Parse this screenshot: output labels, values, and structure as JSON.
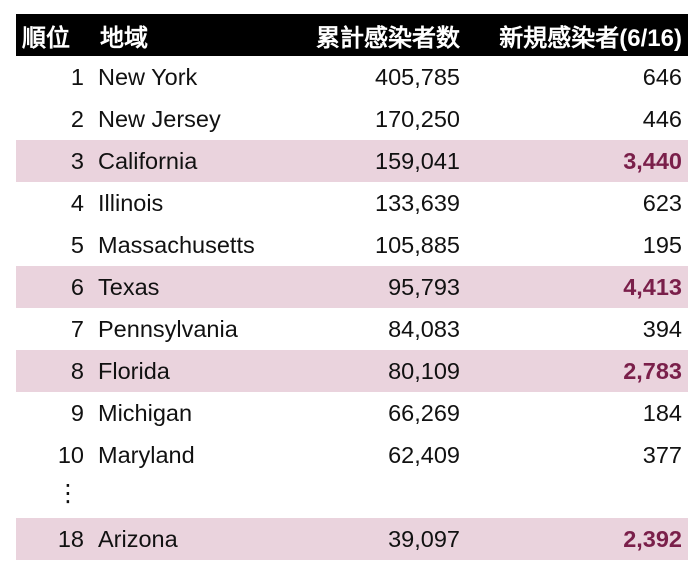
{
  "table": {
    "headers": {
      "rank": "順位",
      "region": "地域",
      "total": "累計感染者数",
      "new": "新規感染者(6/16)"
    },
    "rows": [
      {
        "rank": "1",
        "region": "New York",
        "total": "405,785",
        "new": "646",
        "highlight": false
      },
      {
        "rank": "2",
        "region": "New Jersey",
        "total": "170,250",
        "new": "446",
        "highlight": false
      },
      {
        "rank": "3",
        "region": "California",
        "total": "159,041",
        "new": "3,440",
        "highlight": true
      },
      {
        "rank": "4",
        "region": "Illinois",
        "total": "133,639",
        "new": "623",
        "highlight": false
      },
      {
        "rank": "5",
        "region": "Massachusetts",
        "total": "105,885",
        "new": "195",
        "highlight": false
      },
      {
        "rank": "6",
        "region": "Texas",
        "total": "95,793",
        "new": "4,413",
        "highlight": true
      },
      {
        "rank": "7",
        "region": "Pennsylvania",
        "total": "84,083",
        "new": "394",
        "highlight": false
      },
      {
        "rank": "8",
        "region": "Florida",
        "total": "80,109",
        "new": "2,783",
        "highlight": true
      },
      {
        "rank": "9",
        "region": "Michigan",
        "total": "66,269",
        "new": "184",
        "highlight": false
      },
      {
        "rank": "10",
        "region": "Maryland",
        "total": "62,409",
        "new": "377",
        "highlight": false
      }
    ],
    "ellipsis": "⋮",
    "last_row": {
      "rank": "18",
      "region": "Arizona",
      "total": "39,097",
      "new": "2,392",
      "highlight": true
    },
    "colors": {
      "header_bg": "#000000",
      "header_text": "#ffffff",
      "highlight_bg": "#ead3dd",
      "highlight_text": "#7a1f4a"
    }
  }
}
